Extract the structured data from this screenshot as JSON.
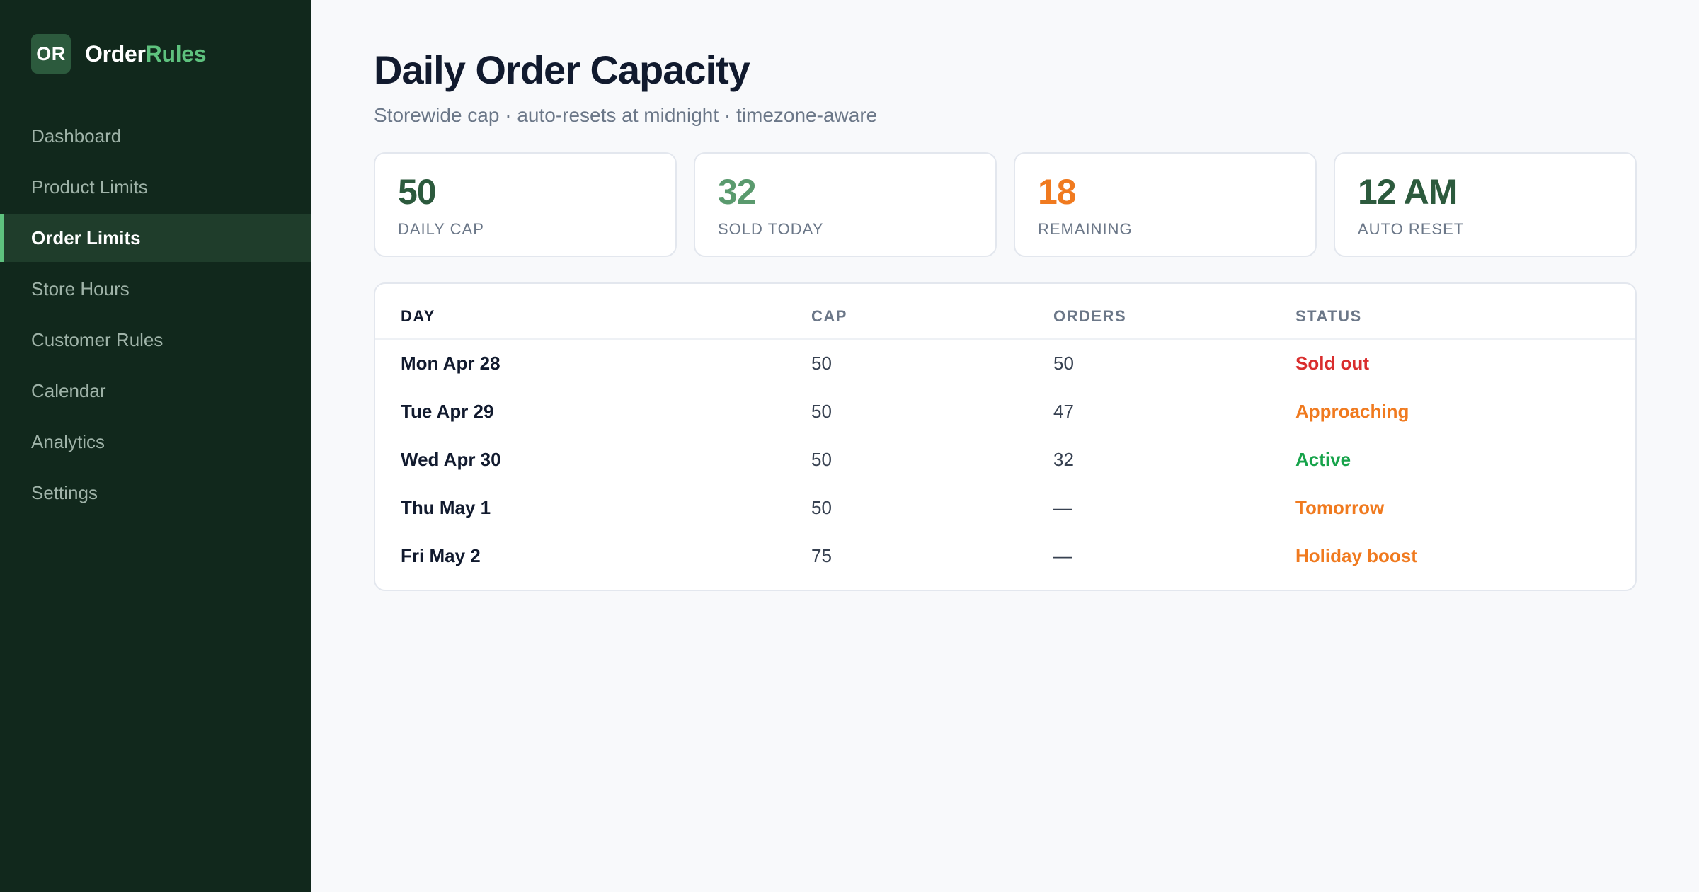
{
  "app": {
    "logo_mark": "OR",
    "name_primary": "Order",
    "name_accent": "Rules"
  },
  "colors": {
    "sidebar_bg": "#11281c",
    "brand_accent": "#5ec27e",
    "dark_green": "#2c5a3d",
    "sold_green": "#5a9a6e",
    "orange": "#f07a1f",
    "red": "#d92d2d",
    "active_green": "#16a34a"
  },
  "sidebar": {
    "items": [
      {
        "label": "Dashboard",
        "active": false
      },
      {
        "label": "Product Limits",
        "active": false
      },
      {
        "label": "Order Limits",
        "active": true
      },
      {
        "label": "Store Hours",
        "active": false
      },
      {
        "label": "Customer Rules",
        "active": false
      },
      {
        "label": "Calendar",
        "active": false
      },
      {
        "label": "Analytics",
        "active": false
      },
      {
        "label": "Settings",
        "active": false
      }
    ]
  },
  "header": {
    "title": "Daily Order Capacity",
    "subtitle": "Storewide cap · auto-resets at midnight · timezone-aware"
  },
  "stats": [
    {
      "value": "50",
      "label": "DAILY CAP",
      "color": "#2c5a3d"
    },
    {
      "value": "32",
      "label": "SOLD TODAY",
      "color": "#5a9a6e"
    },
    {
      "value": "18",
      "label": "REMAINING",
      "color": "#f07a1f"
    },
    {
      "value": "12 AM",
      "label": "AUTO RESET",
      "color": "#2c5a3d"
    }
  ],
  "table": {
    "columns": [
      "DAY",
      "CAP",
      "ORDERS",
      "STATUS"
    ],
    "rows": [
      {
        "day": "Mon Apr 28",
        "cap": "50",
        "orders": "50",
        "status": "Sold out",
        "status_color": "#d92d2d"
      },
      {
        "day": "Tue Apr 29",
        "cap": "50",
        "orders": "47",
        "status": "Approaching",
        "status_color": "#f07a1f"
      },
      {
        "day": "Wed Apr 30",
        "cap": "50",
        "orders": "32",
        "status": "Active",
        "status_color": "#16a34a"
      },
      {
        "day": "Thu May 1",
        "cap": "50",
        "orders": "—",
        "status": "Tomorrow",
        "status_color": "#f07a1f"
      },
      {
        "day": "Fri May 2",
        "cap": "75",
        "orders": "—",
        "status": "Holiday boost",
        "status_color": "#f07a1f"
      }
    ]
  }
}
